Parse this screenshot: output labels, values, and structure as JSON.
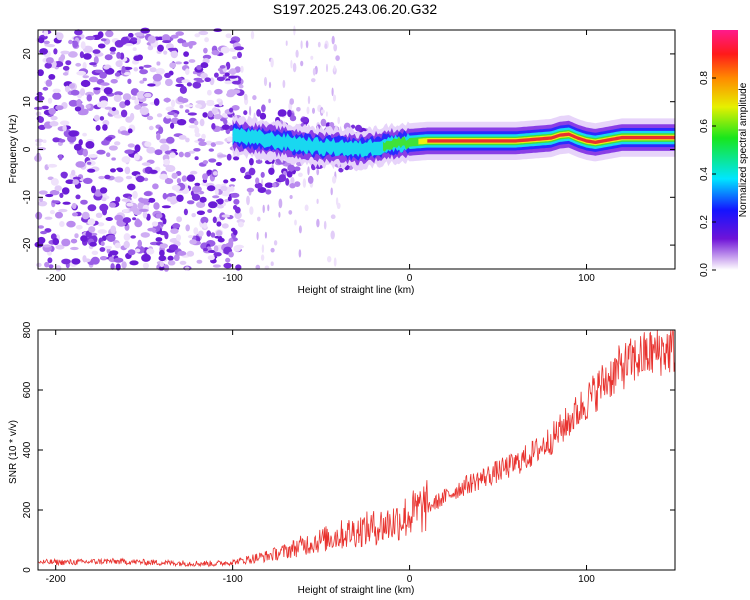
{
  "title": "S197.2025.243.06.20.G32",
  "chart_data": [
    {
      "type": "heatmap",
      "xlabel": "Height of straight line (km)",
      "ylabel": "Frequency (Hz)",
      "xlim": [
        -210,
        150
      ],
      "ylim": [
        -25,
        25
      ],
      "xticks": [
        -200,
        -100,
        0,
        100
      ],
      "yticks": [
        -20,
        -10,
        0,
        10,
        20
      ],
      "noise_region_x": [
        -210,
        -95
      ],
      "signal_start_x": -100,
      "ridge": {
        "x": [
          -100,
          -90,
          -80,
          -70,
          -60,
          -50,
          -40,
          -30,
          -20,
          -10,
          0,
          10,
          20,
          40,
          60,
          80,
          85,
          90,
          95,
          100,
          105,
          120,
          150
        ],
        "freq": [
          3,
          2.5,
          2,
          1.5,
          1,
          0.5,
          0.5,
          0,
          0.5,
          1.2,
          1.5,
          1.8,
          1.8,
          1.8,
          1.8,
          2.4,
          3.0,
          3.2,
          2.4,
          1.8,
          1.5,
          2.5,
          2.5
        ]
      },
      "colorbar": {
        "label": "Normalized spectral amplitude",
        "range": [
          0,
          1
        ],
        "ticks": [
          "0.0",
          "0.2",
          "0.4",
          "0.6",
          "0.8"
        ]
      }
    },
    {
      "type": "line",
      "xlabel": "Height of straight line (km)",
      "ylabel": "SNR (10 * v/v)",
      "xlim": [
        -210,
        150
      ],
      "ylim": [
        0,
        800
      ],
      "xticks": [
        -200,
        -100,
        0,
        100
      ],
      "yticks": [
        0,
        200,
        400,
        600,
        800
      ],
      "color": "#e8322e",
      "series": [
        {
          "name": "SNR",
          "x": [
            -210,
            -190,
            -170,
            -150,
            -130,
            -110,
            -100,
            -90,
            -80,
            -70,
            -60,
            -50,
            -40,
            -30,
            -20,
            -10,
            0,
            10,
            20,
            30,
            40,
            50,
            60,
            70,
            80,
            90,
            100,
            110,
            120,
            130,
            140,
            150
          ],
          "y": [
            25,
            25,
            28,
            25,
            22,
            20,
            25,
            35,
            45,
            60,
            80,
            95,
            110,
            125,
            135,
            150,
            175,
            205,
            240,
            275,
            300,
            325,
            350,
            385,
            430,
            490,
            555,
            620,
            670,
            700,
            720,
            730
          ]
        }
      ]
    }
  ]
}
